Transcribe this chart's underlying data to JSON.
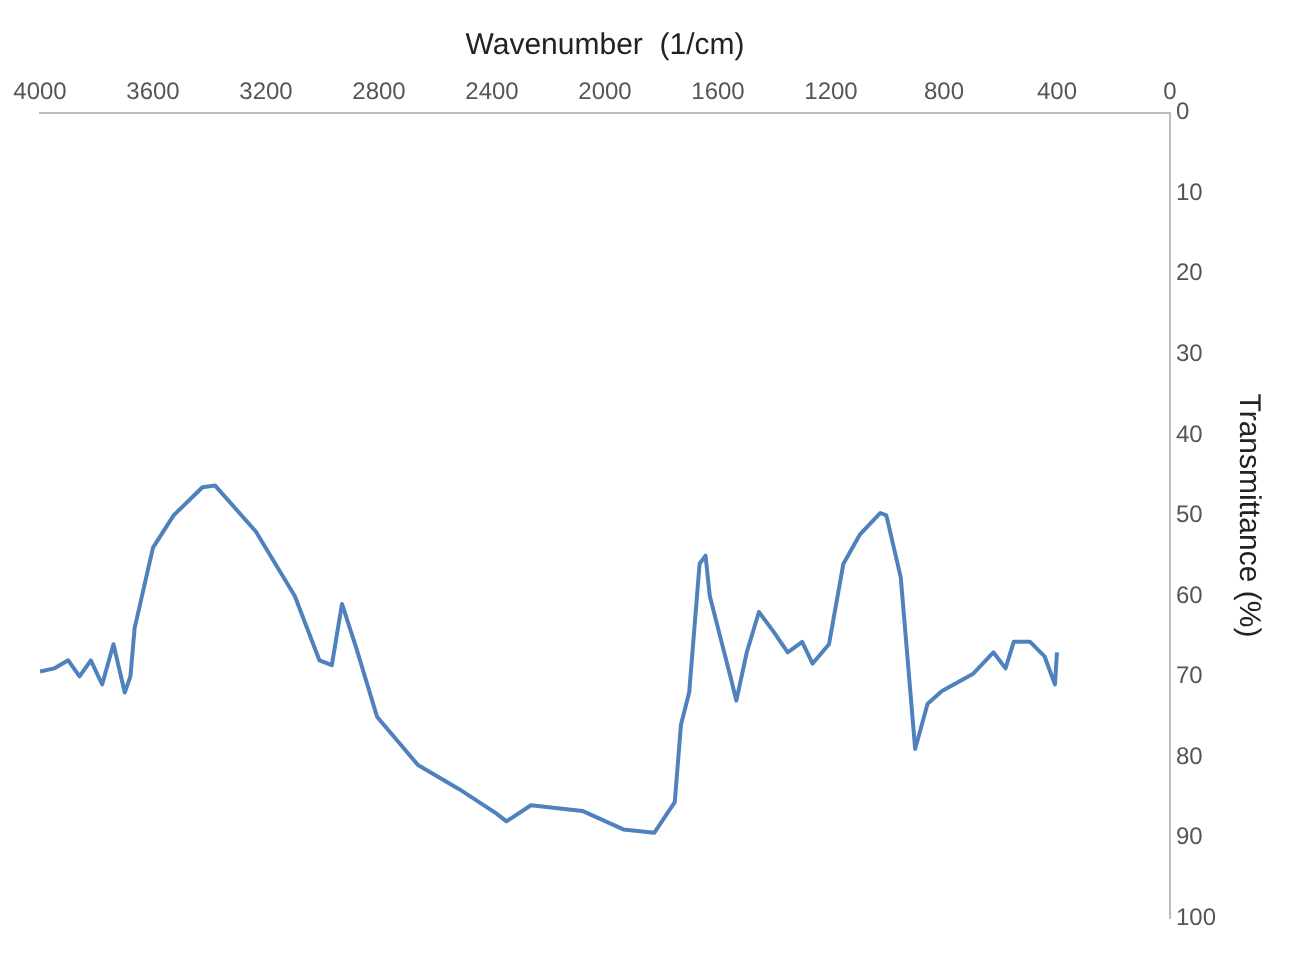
{
  "chart_data": {
    "type": "line",
    "xlabel": "Wavenumber  (1/cm)",
    "ylabel": "Transmittance (%)",
    "xlim": [
      4000,
      0
    ],
    "xticks": [
      4000,
      3600,
      3200,
      2800,
      2400,
      2000,
      1600,
      1200,
      800,
      400,
      0
    ],
    "ylim": [
      100,
      0
    ],
    "yticks": [
      0,
      10,
      20,
      30,
      40,
      50,
      60,
      70,
      80,
      90,
      100
    ],
    "grid": false,
    "marker": "none",
    "series": [
      {
        "color": "#4f81bd",
        "x": [
          4000,
          3950,
          3900,
          3860,
          3820,
          3780,
          3740,
          3700,
          3680,
          3665,
          3600,
          3527,
          3425,
          3380,
          3236,
          3098,
          3011,
          2967,
          2931,
          2880,
          2807,
          2662,
          2516,
          2385,
          2349,
          2262,
          2080,
          1935,
          1825,
          1753,
          1731,
          1702,
          1665,
          1644,
          1629,
          1556,
          1535,
          1498,
          1455,
          1404,
          1353,
          1302,
          1265,
          1207,
          1156,
          1098,
          1025,
          1004,
          953,
          902,
          858,
          807,
          698,
          625,
          582,
          553,
          495,
          444,
          407,
          400
        ],
        "values": [
          69.4,
          69,
          68,
          70,
          68,
          71,
          66,
          72,
          70,
          64,
          54,
          50,
          46.5,
          46.3,
          52,
          60,
          68,
          68.6,
          61,
          66.5,
          75,
          81,
          84,
          87,
          88,
          86,
          86.7,
          89,
          89.4,
          85.6,
          76,
          72,
          56,
          55,
          60,
          70,
          73,
          67,
          62,
          64.4,
          67,
          65.7,
          68.4,
          66,
          56,
          52.4,
          49.7,
          50,
          57.7,
          79,
          73.4,
          71.8,
          69.7,
          67,
          69,
          65.7,
          65.7,
          67.5,
          71,
          67
        ]
      }
    ]
  }
}
